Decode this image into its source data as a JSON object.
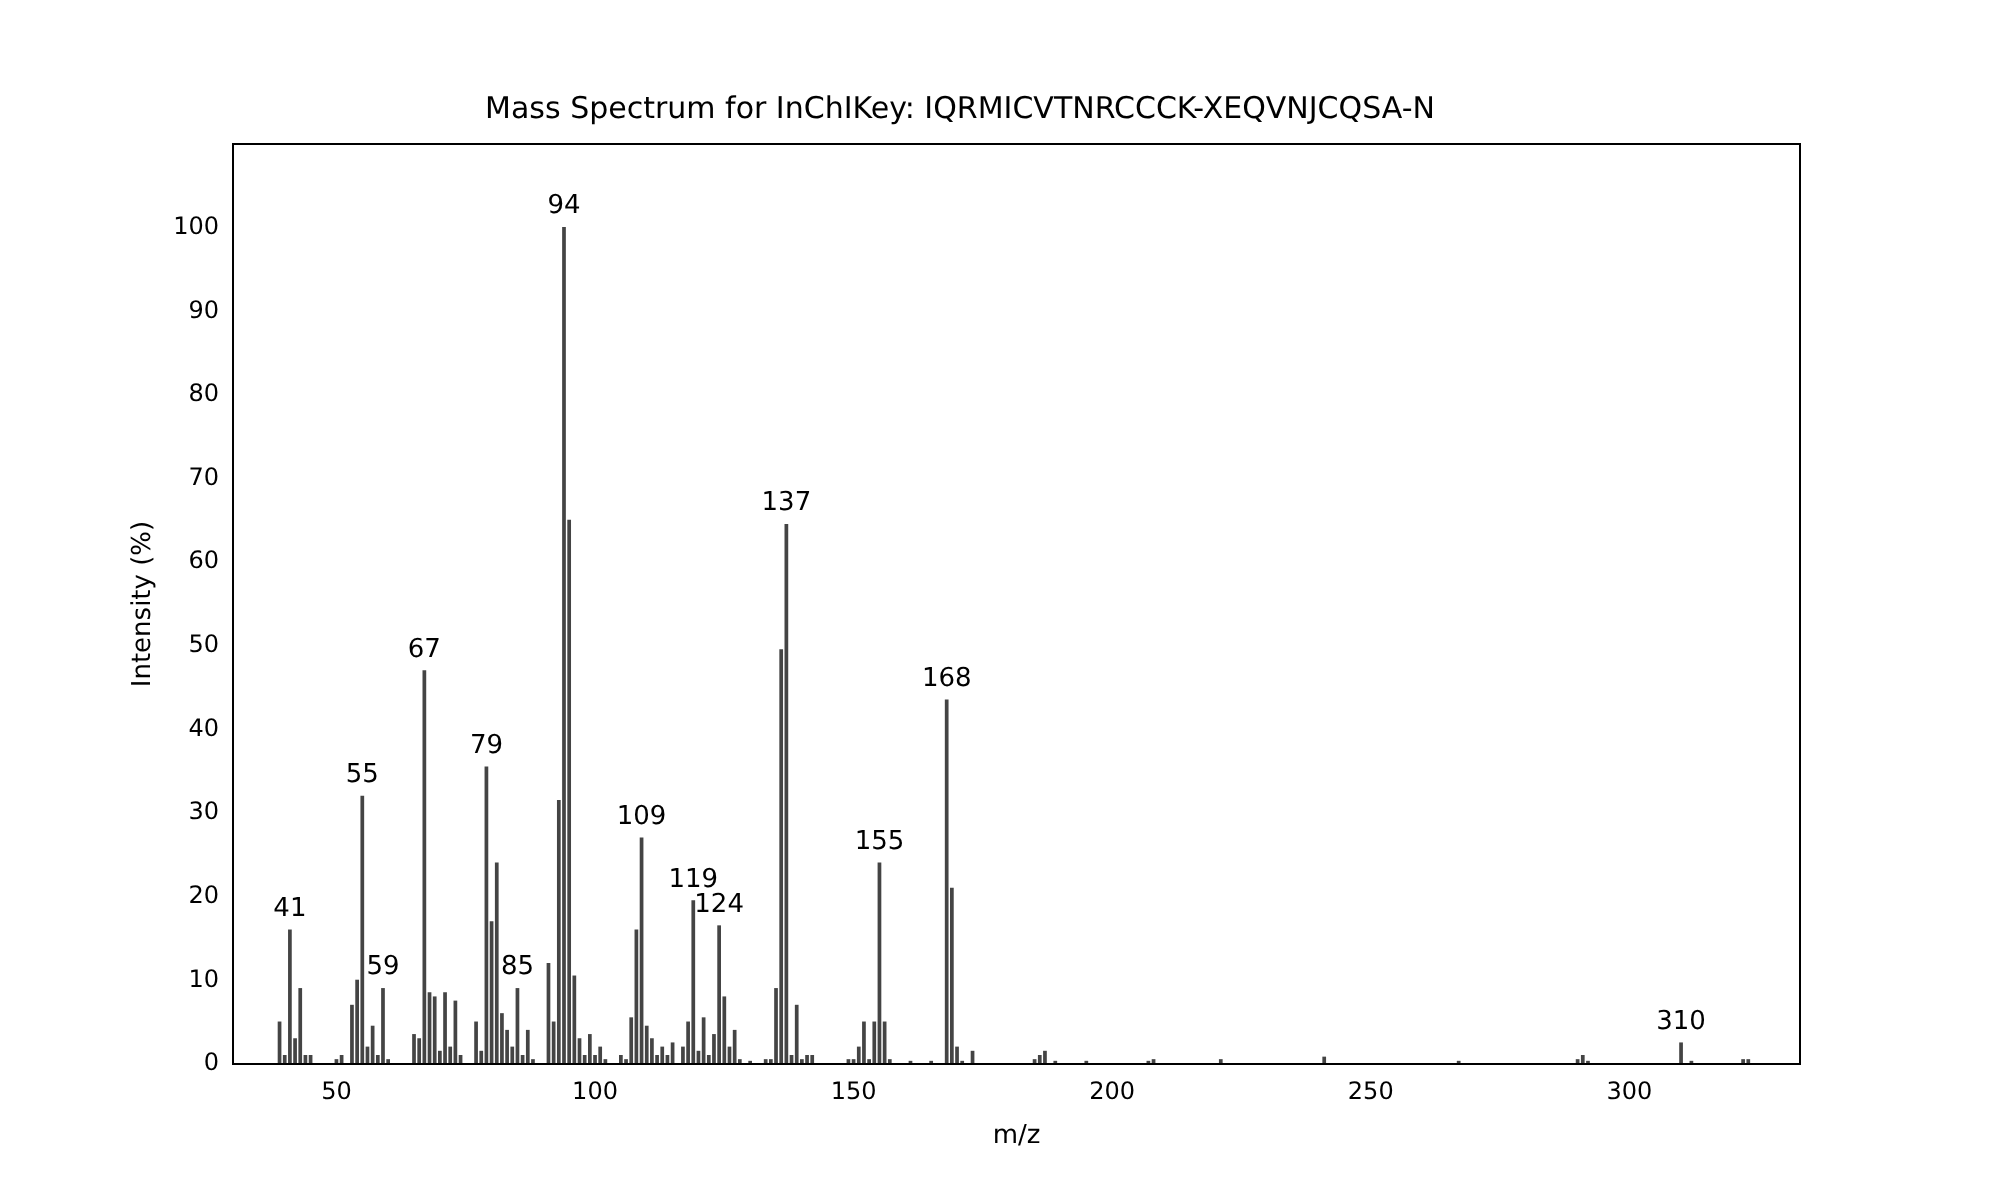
{
  "chart_data": {
    "type": "bar",
    "title": "Mass Spectrum for InChIKey: IQRMICVTNRCCCK-XEQVNJCQSA-N",
    "xlabel": "m/z",
    "ylabel": "Intensity (%)",
    "x": [
      39,
      40,
      41,
      42,
      43,
      44,
      45,
      50,
      51,
      53,
      54,
      55,
      56,
      57,
      58,
      59,
      60,
      65,
      66,
      67,
      68,
      69,
      70,
      71,
      72,
      73,
      74,
      77,
      78,
      79,
      80,
      81,
      82,
      83,
      84,
      85,
      86,
      87,
      88,
      91,
      92,
      93,
      94,
      95,
      96,
      97,
      98,
      99,
      100,
      101,
      102,
      105,
      106,
      107,
      108,
      109,
      110,
      111,
      112,
      113,
      114,
      115,
      117,
      118,
      119,
      120,
      121,
      122,
      123,
      124,
      125,
      126,
      127,
      128,
      130,
      133,
      134,
      135,
      136,
      137,
      138,
      139,
      140,
      141,
      142,
      149,
      150,
      151,
      152,
      153,
      154,
      155,
      156,
      157,
      161,
      165,
      168,
      169,
      170,
      171,
      173,
      185,
      186,
      187,
      189,
      195,
      207,
      208,
      221,
      241,
      267,
      290,
      291,
      292,
      310,
      312,
      322,
      323
    ],
    "values": [
      5,
      1,
      16,
      3,
      9,
      1,
      1,
      0.5,
      1,
      7,
      10,
      32,
      2,
      4.5,
      1,
      9,
      0.5,
      3.5,
      3,
      47,
      8.5,
      8,
      1.5,
      8.5,
      2,
      7.5,
      1,
      5,
      1.5,
      35.5,
      17,
      24,
      6,
      4,
      2,
      9,
      1,
      4,
      0.5,
      12,
      5,
      31.5,
      100,
      65,
      10.5,
      3,
      1,
      3.5,
      1,
      2,
      0.5,
      1,
      0.5,
      5.5,
      16,
      27,
      4.5,
      3,
      1,
      2,
      1,
      2.5,
      2,
      5,
      19.5,
      1.5,
      5.5,
      1,
      3.5,
      16.5,
      8,
      2,
      4,
      0.5,
      0.3,
      0.5,
      0.5,
      9,
      49.5,
      64.5,
      1,
      7,
      0.5,
      1,
      1,
      0.5,
      0.5,
      2,
      5,
      0.5,
      5,
      24,
      5,
      0.5,
      0.3,
      0.3,
      43.5,
      21,
      2,
      0.3,
      1.5,
      0.5,
      1,
      1.5,
      0.3,
      0.3,
      0.3,
      0.5,
      0.5,
      0.8,
      0.3,
      0.5,
      1,
      0.3,
      2.5,
      0.3,
      0.5,
      0.5
    ],
    "color": "#444444",
    "annotations": [
      {
        "text": "41",
        "x": 41,
        "y": 16
      },
      {
        "text": "55",
        "x": 55,
        "y": 32
      },
      {
        "text": "59",
        "x": 59,
        "y": 9
      },
      {
        "text": "67",
        "x": 67,
        "y": 47
      },
      {
        "text": "79",
        "x": 79,
        "y": 35.5
      },
      {
        "text": "85",
        "x": 85,
        "y": 9
      },
      {
        "text": "94",
        "x": 94,
        "y": 100
      },
      {
        "text": "109",
        "x": 109,
        "y": 27
      },
      {
        "text": "119",
        "x": 119,
        "y": 19.5
      },
      {
        "text": "124",
        "x": 124,
        "y": 16.5
      },
      {
        "text": "137",
        "x": 137,
        "y": 64.5
      },
      {
        "text": "155",
        "x": 155,
        "y": 24
      },
      {
        "text": "168",
        "x": 168,
        "y": 43.5
      },
      {
        "text": "310",
        "x": 310,
        "y": 2.5
      }
    ],
    "xlim": [
      30,
      333
    ],
    "xticks": [
      50,
      100,
      150,
      200,
      250,
      300
    ],
    "ylim": [
      0,
      110
    ],
    "yticks": [
      0,
      10,
      20,
      30,
      40,
      50,
      60,
      70,
      80,
      90,
      100
    ],
    "grid": false,
    "legend": false
  }
}
